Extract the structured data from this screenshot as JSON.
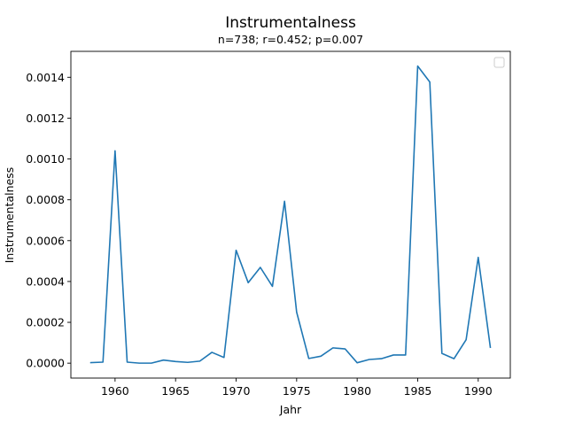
{
  "chart_data": {
    "type": "line",
    "title": "Instrumentalness",
    "subtitle": "n=738; r=0.452; p=0.007",
    "xlabel": "Jahr",
    "ylabel": "Instrumentalness",
    "xlim": [
      1956.35,
      1992.65
    ],
    "ylim": [
      -7.3e-05,
      0.001527
    ],
    "grid": false,
    "legend": "top-right",
    "line_color": "#1f77b4",
    "x_ticks": [
      1960,
      1965,
      1970,
      1975,
      1980,
      1985,
      1990
    ],
    "x_tick_labels": [
      "1960",
      "1965",
      "1970",
      "1975",
      "1980",
      "1985",
      "1990"
    ],
    "y_ticks": [
      0,
      0.0002,
      0.0004,
      0.0006,
      0.0008,
      0.001,
      0.0012,
      0.0014
    ],
    "y_tick_labels": [
      "0.0000",
      "0.0002",
      "0.0004",
      "0.0006",
      "0.0008",
      "0.0010",
      "0.0012",
      "0.0014"
    ],
    "series": [
      {
        "name": "Instrumentalness",
        "x": [
          1958,
          1959,
          1960,
          1961,
          1962,
          1963,
          1964,
          1965,
          1966,
          1967,
          1968,
          1969,
          1970,
          1971,
          1972,
          1973,
          1974,
          1975,
          1976,
          1977,
          1978,
          1979,
          1980,
          1981,
          1982,
          1983,
          1984,
          1985,
          1986,
          1987,
          1988,
          1989,
          1990,
          1991
        ],
        "values": [
          2.5e-06,
          5e-06,
          0.00104,
          5e-06,
          2e-07,
          2e-07,
          1.5e-05,
          8e-06,
          4e-06,
          1e-05,
          5.3e-05,
          2.8e-05,
          0.000553,
          0.000394,
          0.000469,
          0.000376,
          0.000793,
          0.00025,
          2.3e-05,
          3.4e-05,
          7.5e-05,
          7e-05,
          2e-06,
          1.8e-05,
          2.2e-05,
          4e-05,
          4e-05,
          0.001455,
          0.001377,
          4.8e-05,
          2.2e-05,
          0.000115,
          0.000518,
          7.8e-05
        ]
      }
    ]
  }
}
